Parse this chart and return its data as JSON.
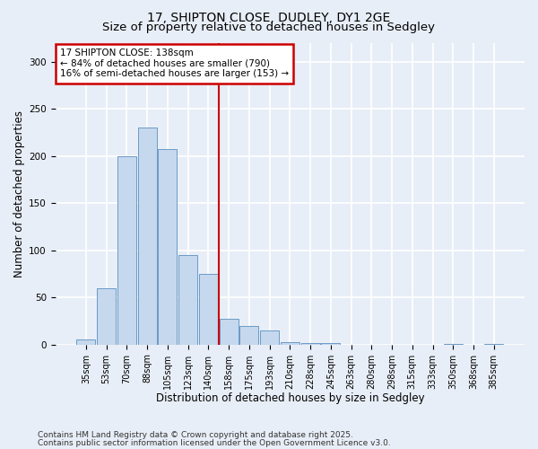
{
  "title1": "17, SHIPTON CLOSE, DUDLEY, DY1 2GE",
  "title2": "Size of property relative to detached houses in Sedgley",
  "xlabel": "Distribution of detached houses by size in Sedgley",
  "ylabel": "Number of detached properties",
  "categories": [
    "35sqm",
    "53sqm",
    "70sqm",
    "88sqm",
    "105sqm",
    "123sqm",
    "140sqm",
    "158sqm",
    "175sqm",
    "193sqm",
    "210sqm",
    "228sqm",
    "245sqm",
    "263sqm",
    "280sqm",
    "298sqm",
    "315sqm",
    "333sqm",
    "350sqm",
    "368sqm",
    "385sqm"
  ],
  "values": [
    5,
    60,
    200,
    230,
    207,
    95,
    75,
    27,
    20,
    15,
    3,
    2,
    2,
    0,
    0,
    0,
    0,
    0,
    1,
    0,
    1
  ],
  "bar_color": "#c5d8ed",
  "bar_edge_color": "#5a8fc0",
  "vline_x": 6.5,
  "vline_color": "#cc0000",
  "annotation_text": "17 SHIPTON CLOSE: 138sqm\n← 84% of detached houses are smaller (790)\n16% of semi-detached houses are larger (153) →",
  "annotation_box_facecolor": "#ffffff",
  "annotation_box_edgecolor": "#cc0000",
  "ylim": [
    0,
    320
  ],
  "yticks": [
    0,
    50,
    100,
    150,
    200,
    250,
    300
  ],
  "footer1": "Contains HM Land Registry data © Crown copyright and database right 2025.",
  "footer2": "Contains public sector information licensed under the Open Government Licence v3.0.",
  "bg_color": "#e8eef7",
  "plot_bg_color": "#e8eef7",
  "grid_color": "#ffffff",
  "title1_fontsize": 10,
  "title2_fontsize": 9.5,
  "axis_label_fontsize": 8.5,
  "tick_fontsize": 7,
  "annot_fontsize": 7.5,
  "footer_fontsize": 6.5
}
